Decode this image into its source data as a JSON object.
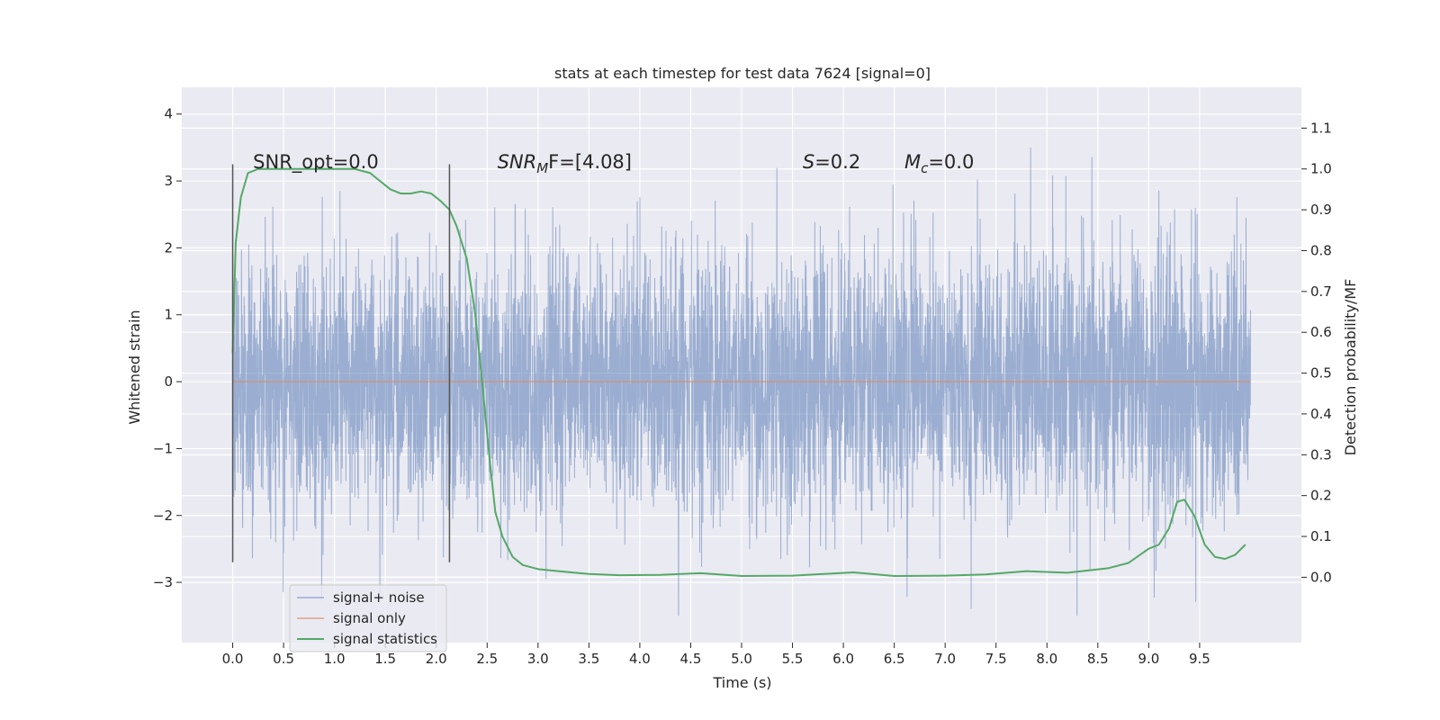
{
  "chart_data": {
    "type": "line",
    "title": "stats at each timestep for test data 7624 [signal=0]",
    "xlabel": "Time (s)",
    "ylabel": "Whitened strain",
    "y2label": "Detection probability/MF",
    "xlim": [
      -0.5,
      10.5
    ],
    "ylim": [
      -3.9,
      4.4
    ],
    "y2lim": [
      -0.16,
      1.2
    ],
    "x_ticks": [
      0.0,
      0.5,
      1.0,
      1.5,
      2.0,
      2.5,
      3.0,
      3.5,
      4.0,
      4.5,
      5.0,
      5.5,
      6.0,
      6.5,
      7.0,
      7.5,
      8.0,
      8.5,
      9.0,
      9.5
    ],
    "x_tick_labels": [
      "0.0",
      "0.5",
      "1.0",
      "1.5",
      "2.0",
      "2.5",
      "3.0",
      "3.5",
      "4.0",
      "4.5",
      "5.0",
      "5.5",
      "6.0",
      "6.5",
      "7.0",
      "7.5",
      "8.0",
      "8.5",
      "9.0",
      "9.5"
    ],
    "y_ticks": [
      -3,
      -2,
      -1,
      0,
      1,
      2,
      3,
      4
    ],
    "y_tick_labels": [
      "−3",
      "−2",
      "−1",
      "0",
      "1",
      "2",
      "3",
      "4"
    ],
    "y2_ticks": [
      0.0,
      0.1,
      0.2,
      0.3,
      0.4,
      0.5,
      0.6,
      0.7,
      0.8,
      0.9,
      1.0,
      1.1
    ],
    "y2_tick_labels": [
      "0.0",
      "0.1",
      "0.2",
      "0.3",
      "0.4",
      "0.5",
      "0.6",
      "0.7",
      "0.8",
      "0.9",
      "1.0",
      "1.1"
    ],
    "grid": true,
    "legend_position": "lower-left",
    "vertical_markers": [
      {
        "x": 0.0,
        "y_from": -2.7,
        "y_to": 3.25
      },
      {
        "x": 2.13,
        "y_from": -2.7,
        "y_to": 3.25
      }
    ],
    "annotations": [
      {
        "x": 0.2,
        "y": 3.3,
        "main": "SNR_opt=0.0",
        "sub": "",
        "rest": ""
      },
      {
        "x": 2.6,
        "y": 3.3,
        "main": "SNR",
        "sub": "M",
        "rest": "F=[4.08]",
        "italic": true
      },
      {
        "x": 5.6,
        "y": 3.3,
        "main": "S",
        "sub": "",
        "rest": "=0.2",
        "italic": true
      },
      {
        "x": 6.6,
        "y": 3.3,
        "main": "M",
        "sub": "c",
        "rest": "=0.0",
        "italic": true
      }
    ],
    "series": [
      {
        "name": "signal+ noise",
        "color": "#4c72b0",
        "axis": "left",
        "kind": "noise",
        "x_start": 0.0,
        "x_end": 10.0,
        "sigma": 1.0,
        "max": 4.05,
        "min": -3.5
      },
      {
        "name": "signal only",
        "color": "#dd8452",
        "axis": "left",
        "kind": "line",
        "x": [
          0.0,
          10.0
        ],
        "y": [
          0.0,
          0.0
        ]
      },
      {
        "name": "signal statistics",
        "color": "#55a868",
        "axis": "right",
        "kind": "line",
        "x": [
          0.0,
          0.03,
          0.08,
          0.15,
          0.25,
          0.4,
          0.6,
          0.8,
          1.0,
          1.2,
          1.35,
          1.45,
          1.55,
          1.65,
          1.75,
          1.85,
          1.95,
          2.05,
          2.13,
          2.2,
          2.3,
          2.38,
          2.45,
          2.52,
          2.58,
          2.65,
          2.75,
          2.85,
          3.0,
          3.2,
          3.5,
          3.8,
          4.2,
          4.6,
          5.0,
          5.5,
          6.1,
          6.5,
          7.0,
          7.4,
          7.8,
          8.2,
          8.6,
          8.8,
          9.0,
          9.1,
          9.2,
          9.28,
          9.35,
          9.45,
          9.55,
          9.65,
          9.75,
          9.85,
          9.95
        ],
        "y": [
          0.55,
          0.82,
          0.93,
          0.99,
          1.0,
          1.0,
          1.0,
          1.0,
          1.0,
          1.0,
          0.99,
          0.97,
          0.95,
          0.94,
          0.94,
          0.945,
          0.94,
          0.92,
          0.9,
          0.86,
          0.78,
          0.65,
          0.48,
          0.3,
          0.16,
          0.1,
          0.05,
          0.03,
          0.02,
          0.015,
          0.008,
          0.005,
          0.006,
          0.01,
          0.003,
          0.004,
          0.012,
          0.003,
          0.004,
          0.007,
          0.015,
          0.011,
          0.022,
          0.035,
          0.07,
          0.08,
          0.12,
          0.185,
          0.19,
          0.15,
          0.08,
          0.05,
          0.045,
          0.055,
          0.08
        ]
      }
    ]
  }
}
